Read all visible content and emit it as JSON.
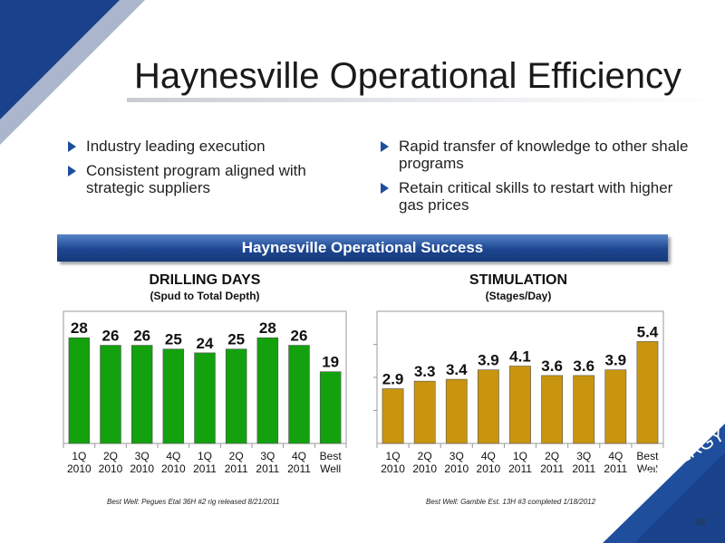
{
  "slide": {
    "title": "Haynesville Operational Efficiency",
    "page_number": "46",
    "logo_text": "EP ENERGY"
  },
  "bullets_left": [
    "Industry leading execution",
    "Consistent program aligned with strategic suppliers"
  ],
  "bullets_right": [
    "Rapid transfer of knowledge to other shale programs",
    "Retain critical skills to restart with higher gas prices"
  ],
  "banner": "Haynesville Operational Success",
  "colors": {
    "brand_blue": "#1f4e9c",
    "green_bar": "#13a10e",
    "gold_bar": "#c9950f"
  },
  "chart_data": [
    {
      "type": "bar",
      "title": "DRILLING DAYS",
      "subtitle": "(Spud to Total Depth)",
      "categories": [
        [
          "1Q",
          "2010"
        ],
        [
          "2Q",
          "2010"
        ],
        [
          "3Q",
          "2010"
        ],
        [
          "4Q",
          "2010"
        ],
        [
          "1Q",
          "2011"
        ],
        [
          "2Q",
          "2011"
        ],
        [
          "3Q",
          "2011"
        ],
        [
          "4Q",
          "2011"
        ],
        [
          "Best",
          "Well"
        ]
      ],
      "values": [
        28,
        26,
        26,
        25,
        24,
        25,
        28,
        26,
        19
      ],
      "data_labels": [
        "28",
        "26",
        "26",
        "25",
        "24",
        "25",
        "28",
        "26",
        "19"
      ],
      "ylim": [
        0,
        35
      ],
      "grid": false,
      "footnote": "Best Well: Pegues Etal 36H #2 rig released 8/21/2011"
    },
    {
      "type": "bar",
      "title": "STIMULATION",
      "subtitle": "(Stages/Day)",
      "categories": [
        [
          "1Q",
          "2010"
        ],
        [
          "2Q",
          "2010"
        ],
        [
          "3Q",
          "2010"
        ],
        [
          "4Q",
          "2010"
        ],
        [
          "1Q",
          "2011"
        ],
        [
          "2Q",
          "2011"
        ],
        [
          "3Q",
          "2011"
        ],
        [
          "4Q",
          "2011"
        ],
        [
          "Best",
          "Well"
        ]
      ],
      "values": [
        2.9,
        3.3,
        3.4,
        3.9,
        4.1,
        3.6,
        3.6,
        3.9,
        5.4
      ],
      "data_labels": [
        "2.9",
        "3.3",
        "3.4",
        "3.9",
        "4.1",
        "3.6",
        "3.6",
        "3.9",
        "5.4"
      ],
      "ylim": [
        0,
        7
      ],
      "grid": false,
      "footnote": "Best Well: Gamble Est. 13H #3 completed 1/18/2012"
    }
  ]
}
